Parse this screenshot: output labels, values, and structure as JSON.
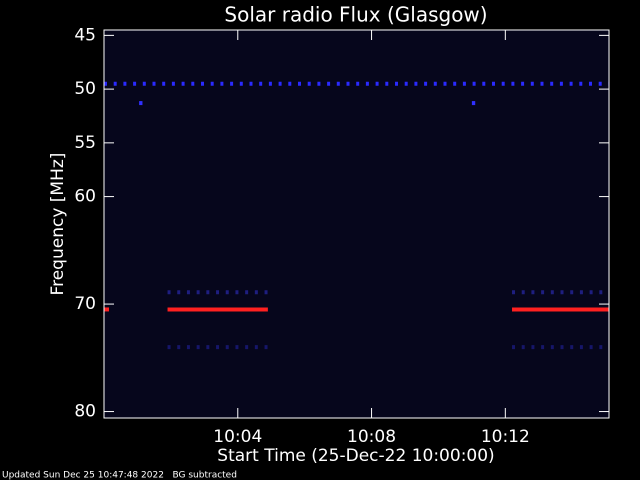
{
  "chart_data": {
    "type": "spectrogram",
    "title": "Solar radio Flux (Glasgow)",
    "y_label": "Frequency [MHz]",
    "x_label": "Start Time (25-Dec-22 10:00:00)",
    "footer": "Updated Sun Dec 25 10:47:48 2022   BG subtracted",
    "background": "#06061c",
    "ylim": [
      44.5,
      80.6
    ],
    "yticks": [
      45,
      50,
      55,
      60,
      70,
      80
    ],
    "xlim": [
      0,
      15.1
    ],
    "xticks": [
      {
        "value": 4,
        "label": "10:04"
      },
      {
        "value": 8,
        "label": "10:08"
      },
      {
        "value": 12,
        "label": "10:12"
      }
    ],
    "segments": [
      {
        "y": 49.5,
        "x": [
          0,
          15.1
        ],
        "color": "#2a2aff",
        "dotted": true
      },
      {
        "y": 51.3,
        "x": [
          1.05,
          1.15
        ],
        "color": "#3030ff",
        "dotted": false
      },
      {
        "y": 51.3,
        "x": [
          11.0,
          11.1
        ],
        "color": "#3030ff",
        "dotted": false
      },
      {
        "y": 70.5,
        "x": [
          0.0,
          0.15
        ],
        "color": "#ff2020",
        "dotted": false
      },
      {
        "y": 70.5,
        "x": [
          1.9,
          4.9
        ],
        "color": "#ff2020",
        "dotted": false
      },
      {
        "y": 70.5,
        "x": [
          12.2,
          15.1
        ],
        "color": "#ff2020",
        "dotted": false
      },
      {
        "y": 68.9,
        "x": [
          1.9,
          4.9
        ],
        "color": "#1e1e80",
        "dotted": true
      },
      {
        "y": 68.9,
        "x": [
          12.2,
          15.1
        ],
        "color": "#1e1e80",
        "dotted": true
      },
      {
        "y": 74.0,
        "x": [
          1.9,
          4.9
        ],
        "color": "#16166a",
        "dotted": true
      },
      {
        "y": 74.0,
        "x": [
          12.2,
          15.1
        ],
        "color": "#16166a",
        "dotted": true
      }
    ]
  }
}
